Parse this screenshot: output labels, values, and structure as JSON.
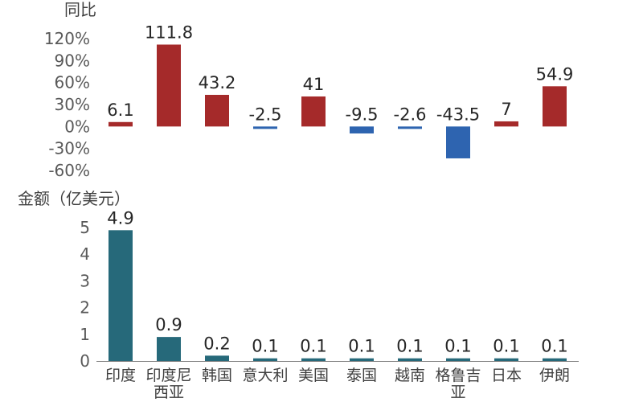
{
  "chart_data": [
    {
      "type": "bar",
      "ylabel": "同比",
      "yticks": [
        "120%",
        "90%",
        "60%",
        "30%",
        "0%",
        "-30%",
        "-60%"
      ],
      "ylim": [
        -60,
        120
      ],
      "categories": [
        "印度",
        "印度尼西亚",
        "韩国",
        "意大利",
        "美国",
        "泰国",
        "越南",
        "格鲁吉亚",
        "日本",
        "伊朗"
      ],
      "values": [
        6.1,
        111.8,
        43.2,
        -2.5,
        41,
        -9.5,
        -2.6,
        -43.5,
        7,
        54.9
      ],
      "value_labels": [
        "6.1",
        "111.8",
        "43.2",
        "-2.5",
        "41",
        "-9.5",
        "-2.6",
        "-43.5",
        "7",
        "54.9"
      ],
      "colors": {
        "positive": "#a52a2a",
        "negative": "#2e64b0"
      },
      "grid": false
    },
    {
      "type": "bar",
      "ylabel": "金额（亿美元）",
      "yticks": [
        "5",
        "4",
        "3",
        "2",
        "1",
        "0"
      ],
      "ylim": [
        0,
        5
      ],
      "categories": [
        "印度",
        "印度尼西亚",
        "韩国",
        "意大利",
        "美国",
        "泰国",
        "越南",
        "格鲁吉亚",
        "日本",
        "伊朗"
      ],
      "category_lines": [
        [
          "印度"
        ],
        [
          "印度尼",
          "西亚"
        ],
        [
          "韩国"
        ],
        [
          "意大利"
        ],
        [
          "美国"
        ],
        [
          "泰国"
        ],
        [
          "越南"
        ],
        [
          "格鲁吉",
          "亚"
        ],
        [
          "日本"
        ],
        [
          "伊朗"
        ]
      ],
      "values": [
        4.9,
        0.9,
        0.2,
        0.1,
        0.1,
        0.1,
        0.1,
        0.1,
        0.1,
        0.1
      ],
      "value_labels": [
        "4.9",
        "0.9",
        "0.2",
        "0.1",
        "0.1",
        "0.1",
        "0.1",
        "0.1",
        "0.1",
        "0.1"
      ],
      "colors": {
        "bar": "#26697a",
        "axis": "#808080"
      },
      "grid": false
    }
  ]
}
